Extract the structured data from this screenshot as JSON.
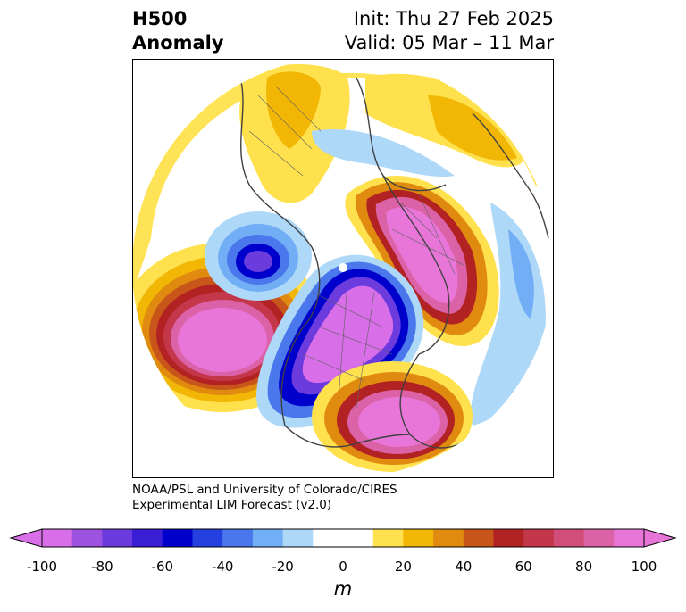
{
  "title": {
    "left_line1": "H500",
    "left_line2": "Anomaly",
    "right_line1": "Init: Thu 27 Feb 2025",
    "right_line2": "Valid: 05 Mar – 11 Mar"
  },
  "credit": {
    "line1": "NOAA/PSL and University of Colorado/CIRES",
    "line2": "Experimental LIM Forecast (v2.0)"
  },
  "colorbar": {
    "unit": "m",
    "tick_labels": [
      "-100",
      "-80",
      "-60",
      "-40",
      "-20",
      "0",
      "20",
      "40",
      "60",
      "80",
      "100"
    ],
    "tick_values": [
      -100,
      -80,
      -60,
      -40,
      -20,
      0,
      20,
      40,
      60,
      80,
      100
    ],
    "colors": [
      "#d86ee8",
      "#9e52e0",
      "#6b3bde",
      "#3a1ed6",
      "#0000cc",
      "#2440e0",
      "#4a78ec",
      "#72aef5",
      "#aed8f8",
      "#ffffff",
      "#ffffff",
      "#ffe14d",
      "#f2b705",
      "#e08a10",
      "#c8561a",
      "#b22222",
      "#c4364a",
      "#d24e7a",
      "#dc62a8",
      "#e876d8"
    ],
    "extend": "both"
  },
  "map": {
    "projection": "north polar stereographic",
    "anomalies": [
      {
        "region": "north pacific",
        "sign": "positive",
        "peak_m": 100
      },
      {
        "region": "north america",
        "sign": "negative",
        "peak_m": -100
      },
      {
        "region": "southeastern united states / western atlantic",
        "sign": "positive",
        "peak_m": 100
      },
      {
        "region": "northern siberia",
        "sign": "positive",
        "peak_m": 100
      },
      {
        "region": "alaska",
        "sign": "negative",
        "peak_m": -100
      },
      {
        "region": "europe",
        "sign": "positive",
        "peak_m": 20
      }
    ]
  }
}
